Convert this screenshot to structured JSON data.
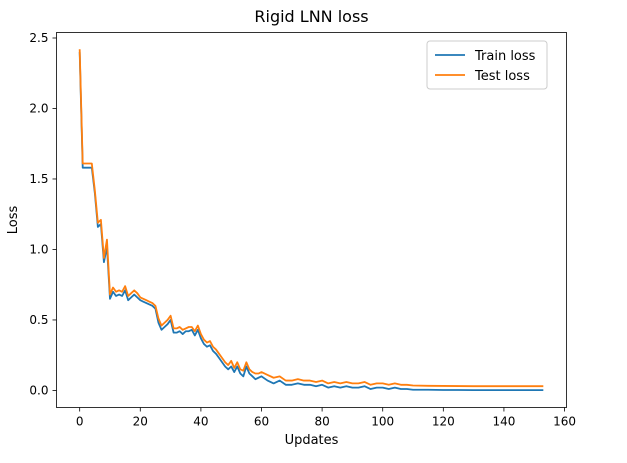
{
  "chart_data": {
    "type": "line",
    "title": "Rigid LNN loss",
    "xlabel": "Updates",
    "ylabel": "Loss",
    "xlim": [
      -7.65,
      160.65
    ],
    "ylim": [
      -0.121,
      2.539
    ],
    "xticks": [
      0,
      20,
      40,
      60,
      80,
      100,
      120,
      140,
      160
    ],
    "yticks": [
      0.0,
      0.5,
      1.0,
      1.5,
      2.0,
      2.5
    ],
    "xtick_labels": [
      "0",
      "20",
      "40",
      "60",
      "80",
      "100",
      "120",
      "140",
      "160"
    ],
    "ytick_labels": [
      "0.0",
      "0.5",
      "1.0",
      "1.5",
      "2.0",
      "2.5"
    ],
    "grid": false,
    "legend_position": "top-right",
    "series": [
      {
        "name": "Train loss",
        "color": "#1f77b4",
        "x": [
          0,
          1,
          2,
          3,
          4,
          5,
          6,
          7,
          8,
          9,
          10,
          11,
          12,
          13,
          14,
          15,
          16,
          17,
          18,
          19,
          20,
          21,
          22,
          23,
          24,
          25,
          26,
          27,
          28,
          29,
          30,
          31,
          32,
          33,
          34,
          35,
          36,
          37,
          38,
          39,
          40,
          41,
          42,
          43,
          44,
          45,
          46,
          47,
          48,
          49,
          50,
          51,
          52,
          53,
          54,
          55,
          56,
          57,
          58,
          59,
          60,
          62,
          64,
          66,
          68,
          70,
          72,
          74,
          76,
          78,
          80,
          82,
          84,
          86,
          88,
          90,
          92,
          94,
          96,
          98,
          100,
          102,
          104,
          106,
          108,
          110,
          115,
          120,
          125,
          130,
          135,
          140,
          145,
          150,
          153
        ],
        "values": [
          2.4,
          1.58,
          1.58,
          1.58,
          1.58,
          1.4,
          1.16,
          1.18,
          0.91,
          1.02,
          0.65,
          0.7,
          0.67,
          0.68,
          0.67,
          0.71,
          0.64,
          0.66,
          0.68,
          0.66,
          0.64,
          0.63,
          0.62,
          0.61,
          0.6,
          0.58,
          0.48,
          0.43,
          0.45,
          0.47,
          0.5,
          0.41,
          0.41,
          0.42,
          0.4,
          0.42,
          0.42,
          0.43,
          0.39,
          0.43,
          0.37,
          0.33,
          0.31,
          0.32,
          0.28,
          0.26,
          0.23,
          0.2,
          0.17,
          0.15,
          0.17,
          0.13,
          0.17,
          0.12,
          0.1,
          0.17,
          0.12,
          0.1,
          0.08,
          0.09,
          0.1,
          0.07,
          0.05,
          0.07,
          0.04,
          0.04,
          0.05,
          0.04,
          0.04,
          0.03,
          0.04,
          0.02,
          0.03,
          0.02,
          0.03,
          0.02,
          0.02,
          0.03,
          0.01,
          0.02,
          0.02,
          0.01,
          0.02,
          0.01,
          0.01,
          0.005,
          0.005,
          0.003,
          0.003,
          0.002,
          0.002,
          0.002,
          0.002,
          0.002,
          0.002
        ]
      },
      {
        "name": "Test loss",
        "color": "#ff7f0e",
        "x": [
          0,
          1,
          2,
          3,
          4,
          5,
          6,
          7,
          8,
          9,
          10,
          11,
          12,
          13,
          14,
          15,
          16,
          17,
          18,
          19,
          20,
          21,
          22,
          23,
          24,
          25,
          26,
          27,
          28,
          29,
          30,
          31,
          32,
          33,
          34,
          35,
          36,
          37,
          38,
          39,
          40,
          41,
          42,
          43,
          44,
          45,
          46,
          47,
          48,
          49,
          50,
          51,
          52,
          53,
          54,
          55,
          56,
          57,
          58,
          59,
          60,
          62,
          64,
          66,
          68,
          70,
          72,
          74,
          76,
          78,
          80,
          82,
          84,
          86,
          88,
          90,
          92,
          94,
          96,
          98,
          100,
          102,
          104,
          106,
          108,
          110,
          115,
          120,
          125,
          130,
          135,
          140,
          145,
          150,
          153
        ],
        "values": [
          2.42,
          1.61,
          1.61,
          1.61,
          1.61,
          1.42,
          1.19,
          1.21,
          0.94,
          1.07,
          0.68,
          0.73,
          0.7,
          0.71,
          0.7,
          0.74,
          0.67,
          0.69,
          0.71,
          0.69,
          0.66,
          0.65,
          0.64,
          0.63,
          0.62,
          0.6,
          0.51,
          0.46,
          0.48,
          0.5,
          0.53,
          0.44,
          0.44,
          0.45,
          0.43,
          0.44,
          0.45,
          0.45,
          0.42,
          0.46,
          0.4,
          0.36,
          0.34,
          0.35,
          0.31,
          0.29,
          0.26,
          0.23,
          0.2,
          0.18,
          0.21,
          0.16,
          0.2,
          0.15,
          0.14,
          0.2,
          0.15,
          0.13,
          0.12,
          0.12,
          0.13,
          0.11,
          0.09,
          0.1,
          0.07,
          0.07,
          0.08,
          0.07,
          0.07,
          0.06,
          0.07,
          0.05,
          0.06,
          0.05,
          0.06,
          0.05,
          0.05,
          0.06,
          0.04,
          0.05,
          0.05,
          0.04,
          0.05,
          0.04,
          0.04,
          0.035,
          0.033,
          0.032,
          0.031,
          0.03,
          0.03,
          0.03,
          0.03,
          0.03,
          0.03
        ]
      }
    ]
  }
}
